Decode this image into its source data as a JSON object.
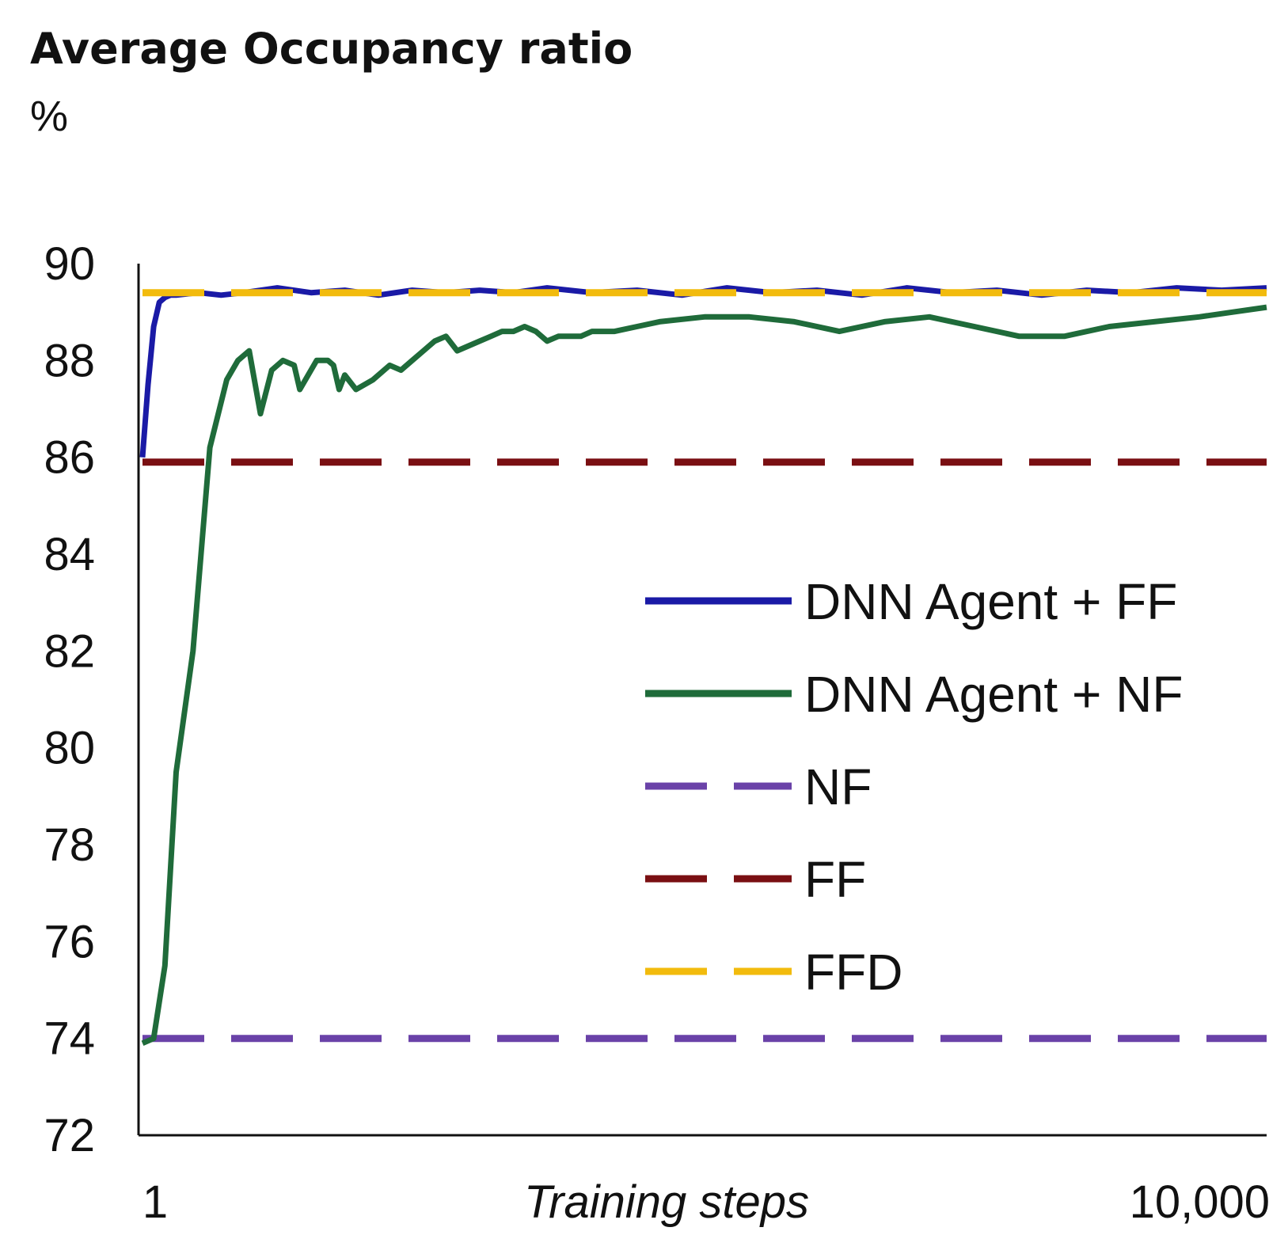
{
  "chart_data": {
    "type": "line",
    "title": "Average Occupancy ratio",
    "ylabel": "%",
    "xlabel": "Training steps",
    "x_ticks": [
      "1",
      "10,000"
    ],
    "xlim": [
      1,
      10000
    ],
    "ylim": [
      72,
      90
    ],
    "y_ticks": [
      72,
      74,
      76,
      78,
      80,
      82,
      84,
      86,
      88,
      90
    ],
    "grid": false,
    "legend_position": "center-right",
    "series": [
      {
        "name": "DNN Agent + FF",
        "style": "solid",
        "color": "#1a1aa6",
        "x": [
          1,
          50,
          100,
          150,
          200,
          250,
          300,
          500,
          700,
          900,
          1200,
          1500,
          1800,
          2100,
          2400,
          2700,
          3000,
          3300,
          3600,
          4000,
          4400,
          4800,
          5200,
          5600,
          6000,
          6400,
          6800,
          7200,
          7600,
          8000,
          8400,
          8800,
          9200,
          9600,
          10000
        ],
        "values": [
          86.0,
          87.5,
          88.7,
          89.2,
          89.3,
          89.35,
          89.35,
          89.4,
          89.35,
          89.4,
          89.5,
          89.4,
          89.45,
          89.35,
          89.45,
          89.4,
          89.45,
          89.4,
          89.5,
          89.4,
          89.45,
          89.35,
          89.5,
          89.4,
          89.45,
          89.35,
          89.5,
          89.4,
          89.45,
          89.35,
          89.45,
          89.4,
          89.5,
          89.45,
          89.5
        ]
      },
      {
        "name": "DNN Agent + NF",
        "style": "solid",
        "color": "#1f6b3a",
        "x": [
          1,
          100,
          200,
          300,
          450,
          600,
          750,
          850,
          950,
          1050,
          1150,
          1250,
          1350,
          1400,
          1450,
          1550,
          1650,
          1700,
          1750,
          1800,
          1900,
          2050,
          2200,
          2300,
          2400,
          2500,
          2600,
          2700,
          2800,
          2900,
          3000,
          3100,
          3200,
          3300,
          3400,
          3500,
          3600,
          3700,
          3800,
          3900,
          4000,
          4200,
          4400,
          4600,
          5000,
          5400,
          5800,
          6200,
          6600,
          7000,
          7400,
          7800,
          8200,
          8600,
          9000,
          9400,
          9700,
          10000
        ],
        "values": [
          73.9,
          74.0,
          75.5,
          79.5,
          82.0,
          86.2,
          87.6,
          88.0,
          88.2,
          86.9,
          87.8,
          88.0,
          87.9,
          87.4,
          87.6,
          88.0,
          88.0,
          87.9,
          87.4,
          87.7,
          87.4,
          87.6,
          87.9,
          87.8,
          88.0,
          88.2,
          88.4,
          88.5,
          88.2,
          88.3,
          88.4,
          88.5,
          88.6,
          88.6,
          88.7,
          88.6,
          88.4,
          88.5,
          88.5,
          88.5,
          88.6,
          88.6,
          88.7,
          88.8,
          88.9,
          88.9,
          88.8,
          88.6,
          88.8,
          88.9,
          88.7,
          88.5,
          88.5,
          88.7,
          88.8,
          88.9,
          89.0,
          89.1
        ]
      },
      {
        "name": "NF",
        "style": "dashed",
        "color": "#6a42a8",
        "x": [
          1,
          10000
        ],
        "values": [
          74.0,
          74.0
        ]
      },
      {
        "name": "FF",
        "style": "dashed",
        "color": "#7a0f12",
        "x": [
          1,
          10000
        ],
        "values": [
          85.9,
          85.9
        ]
      },
      {
        "name": "FFD",
        "style": "dashed",
        "color": "#f2bb0d",
        "x": [
          1,
          10000
        ],
        "values": [
          89.4,
          89.4
        ]
      }
    ]
  }
}
